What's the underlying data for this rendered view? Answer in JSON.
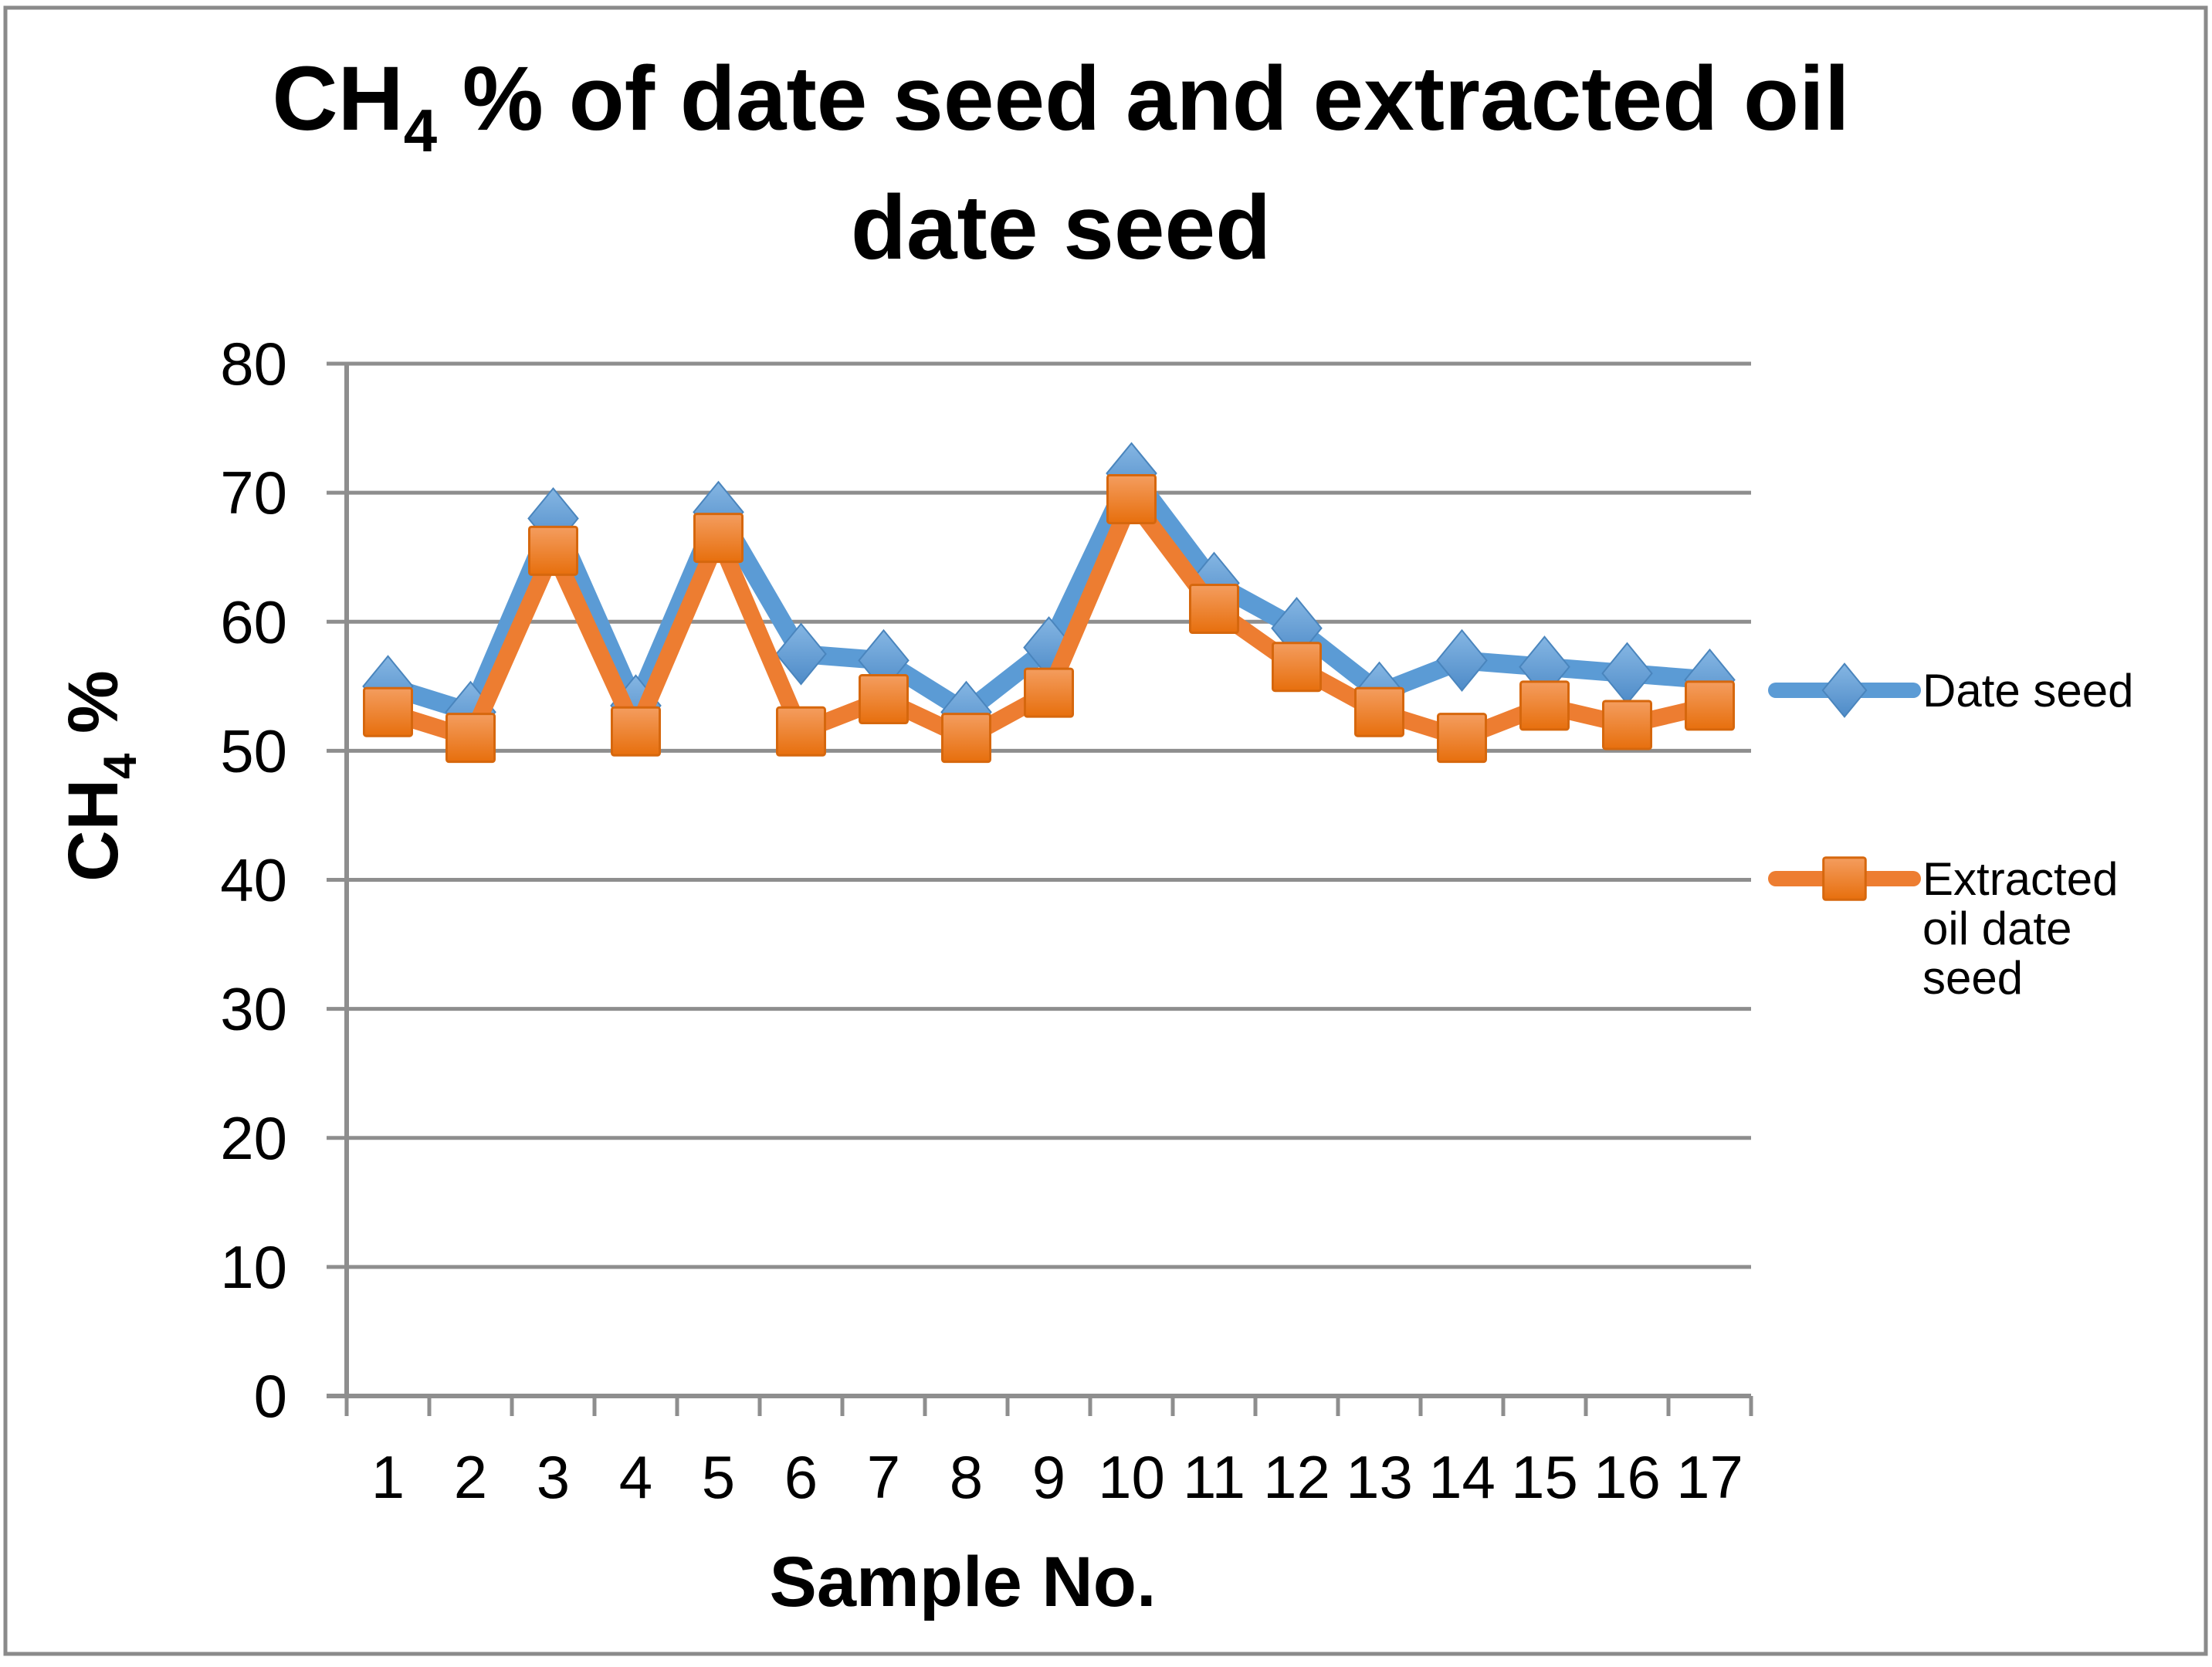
{
  "figure": {
    "background": "#FFFFFF",
    "border_color": "#8A8A8A"
  },
  "chart_data": {
    "type": "line",
    "title": {
      "text": "CH4 % of date seed and extracted oil date seed",
      "lines": [
        {
          "parts": [
            {
              "text": "CH"
            },
            {
              "text": "4",
              "subscript": true
            },
            {
              "text": " % of date seed and extracted oil"
            }
          ]
        },
        {
          "parts": [
            {
              "text": "date seed"
            }
          ]
        }
      ]
    },
    "x_axis": {
      "title": "Sample No.",
      "categories": [
        "1",
        "2",
        "3",
        "4",
        "5",
        "6",
        "7",
        "8",
        "9",
        "10",
        "11",
        "12",
        "13",
        "14",
        "15",
        "16",
        "17"
      ]
    },
    "y_axis": {
      "title": {
        "text": "CH4 %",
        "parts": [
          {
            "text": "CH"
          },
          {
            "text": "4",
            "subscript": true
          },
          {
            "text": " %"
          }
        ]
      },
      "min": 0,
      "max": 80,
      "step": 10,
      "tick_labels_top_to_bottom": [
        "80",
        "70",
        "60",
        "50",
        "40",
        "30",
        "20",
        "10",
        "0"
      ]
    },
    "series": [
      {
        "name": "Date seed",
        "legend_lines": [
          "Date seed"
        ],
        "color": "#5B9BD5",
        "marker": "diamond",
        "values": [
          55,
          53,
          68,
          53.5,
          68.5,
          57.5,
          57,
          53,
          58,
          71.5,
          63,
          59.5,
          54.5,
          57,
          56.5,
          56,
          55.5
        ]
      },
      {
        "name": "Extracted oil date seed",
        "legend_lines": [
          "Extracted",
          "oil date",
          "seed"
        ],
        "color": "#ED7D31",
        "marker": "square",
        "values": [
          53,
          51,
          65.5,
          51.5,
          66.5,
          51.5,
          54,
          51,
          54.5,
          69.5,
          61,
          56.5,
          53,
          51,
          53.5,
          52,
          53.5
        ]
      }
    ],
    "legend_position": "right",
    "grid": true,
    "ylim": [
      0,
      80
    ],
    "colors": {
      "gridline": "#8E8E8E",
      "axis": "#8E8E8E",
      "text": "#000000"
    }
  }
}
